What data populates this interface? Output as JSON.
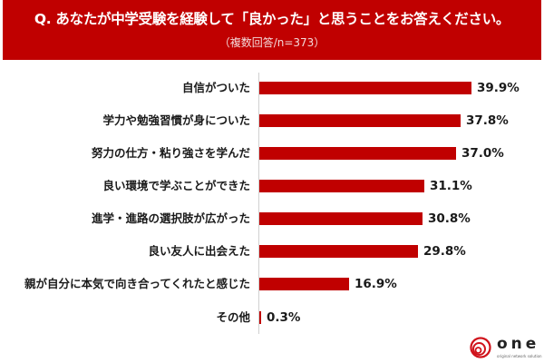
{
  "header": {
    "title": "Q. あなたが中学受験を経験して「良かった」と思うことをお答えください。",
    "subtitle": "（複数回答/n=373）",
    "background_color": "#c00000"
  },
  "chart_data": {
    "type": "bar",
    "orientation": "horizontal",
    "title": "Q. あなたが中学受験を経験して「良かった」と思うことをお答えください。",
    "subtitle": "（複数回答/n=373）",
    "xlabel": "",
    "ylabel": "",
    "categories": [
      "自信がついた",
      "学力や勉強習慣が身についた",
      "努力の仕方・粘り強さを学んだ",
      "良い環境で学ぶことができた",
      "進学・進路の選択肢が広がった",
      "良い友人に出会えた",
      "親が自分に本気で向き合ってくれたと感じた",
      "その他"
    ],
    "values": [
      39.9,
      37.8,
      37.0,
      31.1,
      30.8,
      29.8,
      16.9,
      0.3
    ],
    "value_labels": [
      "39.9%",
      "37.8%",
      "37.0%",
      "31.1%",
      "30.8%",
      "29.8%",
      "16.9%",
      "0.3%"
    ],
    "unit": "%",
    "bar_color": "#c00000",
    "grid": false,
    "legend": "none"
  },
  "rows": [
    {
      "label": "自信がついた",
      "value": 39.9,
      "display": "39.9%"
    },
    {
      "label": "学力や勉強習慣が身についた",
      "value": 37.8,
      "display": "37.8%"
    },
    {
      "label": "努力の仕方・粘り強さを学んだ",
      "value": 37.0,
      "display": "37.0%"
    },
    {
      "label": "良い環境で学ぶことができた",
      "value": 31.1,
      "display": "31.1%"
    },
    {
      "label": "進学・進路の選択肢が広がった",
      "value": 30.8,
      "display": "30.8%"
    },
    {
      "label": "良い友人に出会えた",
      "value": 29.8,
      "display": "29.8%"
    },
    {
      "label": "親が自分に本気で向き合ってくれたと感じた",
      "value": 16.9,
      "display": "16.9%"
    },
    {
      "label": "その他",
      "value": 0.3,
      "display": "0.3%"
    }
  ],
  "logo": {
    "word": "one",
    "tagline": "original network solution",
    "icon": "swirl-logo-icon"
  }
}
